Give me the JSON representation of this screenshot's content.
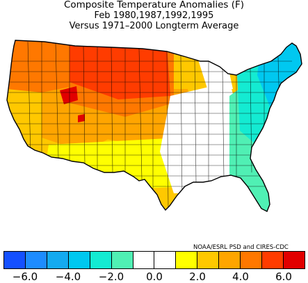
{
  "title": {
    "line1": "Composite Temperature Anomalies (F)",
    "line2": "Feb  1980,1987,1992,1995",
    "line3": "Versus 1971–2000 Longterm Average"
  },
  "credit": "NOAA/ESRL PSD and CIRES-CDC",
  "legend": {
    "colors": [
      "#1450ff",
      "#1e8cff",
      "#14aaf0",
      "#00c8f0",
      "#14ebd2",
      "#50f0b4",
      "#ffffff",
      "#ffffff",
      "#ffff00",
      "#ffc800",
      "#ffa500",
      "#ff7800",
      "#ff3c00",
      "#e10000"
    ],
    "tick_labels": [
      "−6.0",
      "−4.0",
      "−2.0",
      "0.0",
      "2.0",
      "4.0",
      "6.0"
    ]
  },
  "map_regions": [
    {
      "name": "pacific-northwest",
      "anomaly": 3.5,
      "color": "#ff7800"
    },
    {
      "name": "california",
      "anomaly": 2.0,
      "color": "#ffc800"
    },
    {
      "name": "great-basin",
      "anomaly": 3.0,
      "color": "#ffa500"
    },
    {
      "name": "idaho-hotspot",
      "anomaly": 6.0,
      "color": "#e10000"
    },
    {
      "name": "montana-north-dakota",
      "anomaly": 5.0,
      "color": "#ff3c00"
    },
    {
      "name": "central-rockies",
      "anomaly": 3.5,
      "color": "#ff7800"
    },
    {
      "name": "northern-plains",
      "anomaly": 4.5,
      "color": "#ff3c00"
    },
    {
      "name": "central-plains",
      "anomaly": 3.0,
      "color": "#ffa500"
    },
    {
      "name": "upper-midwest",
      "anomaly": 2.5,
      "color": "#ffc800"
    },
    {
      "name": "southwest",
      "anomaly": 2.0,
      "color": "#ffc800"
    },
    {
      "name": "southern-arizona-new-mexico",
      "anomaly": 1.0,
      "color": "#ffff00"
    },
    {
      "name": "southern-plains",
      "anomaly": 1.0,
      "color": "#ffff00"
    },
    {
      "name": "ohio-valley-south",
      "anomaly": 0.0,
      "color": "#ffffff"
    },
    {
      "name": "michigan",
      "anomaly": 0.0,
      "color": "#ffffff"
    },
    {
      "name": "northeast",
      "anomaly": -2.5,
      "color": "#14ebd2"
    },
    {
      "name": "new-england-north",
      "anomaly": -3.0,
      "color": "#00c8f0"
    },
    {
      "name": "southeast-coast",
      "anomaly": -1.5,
      "color": "#50f0b4"
    },
    {
      "name": "florida",
      "anomaly": -1.0,
      "color": "#50f0b4"
    }
  ]
}
